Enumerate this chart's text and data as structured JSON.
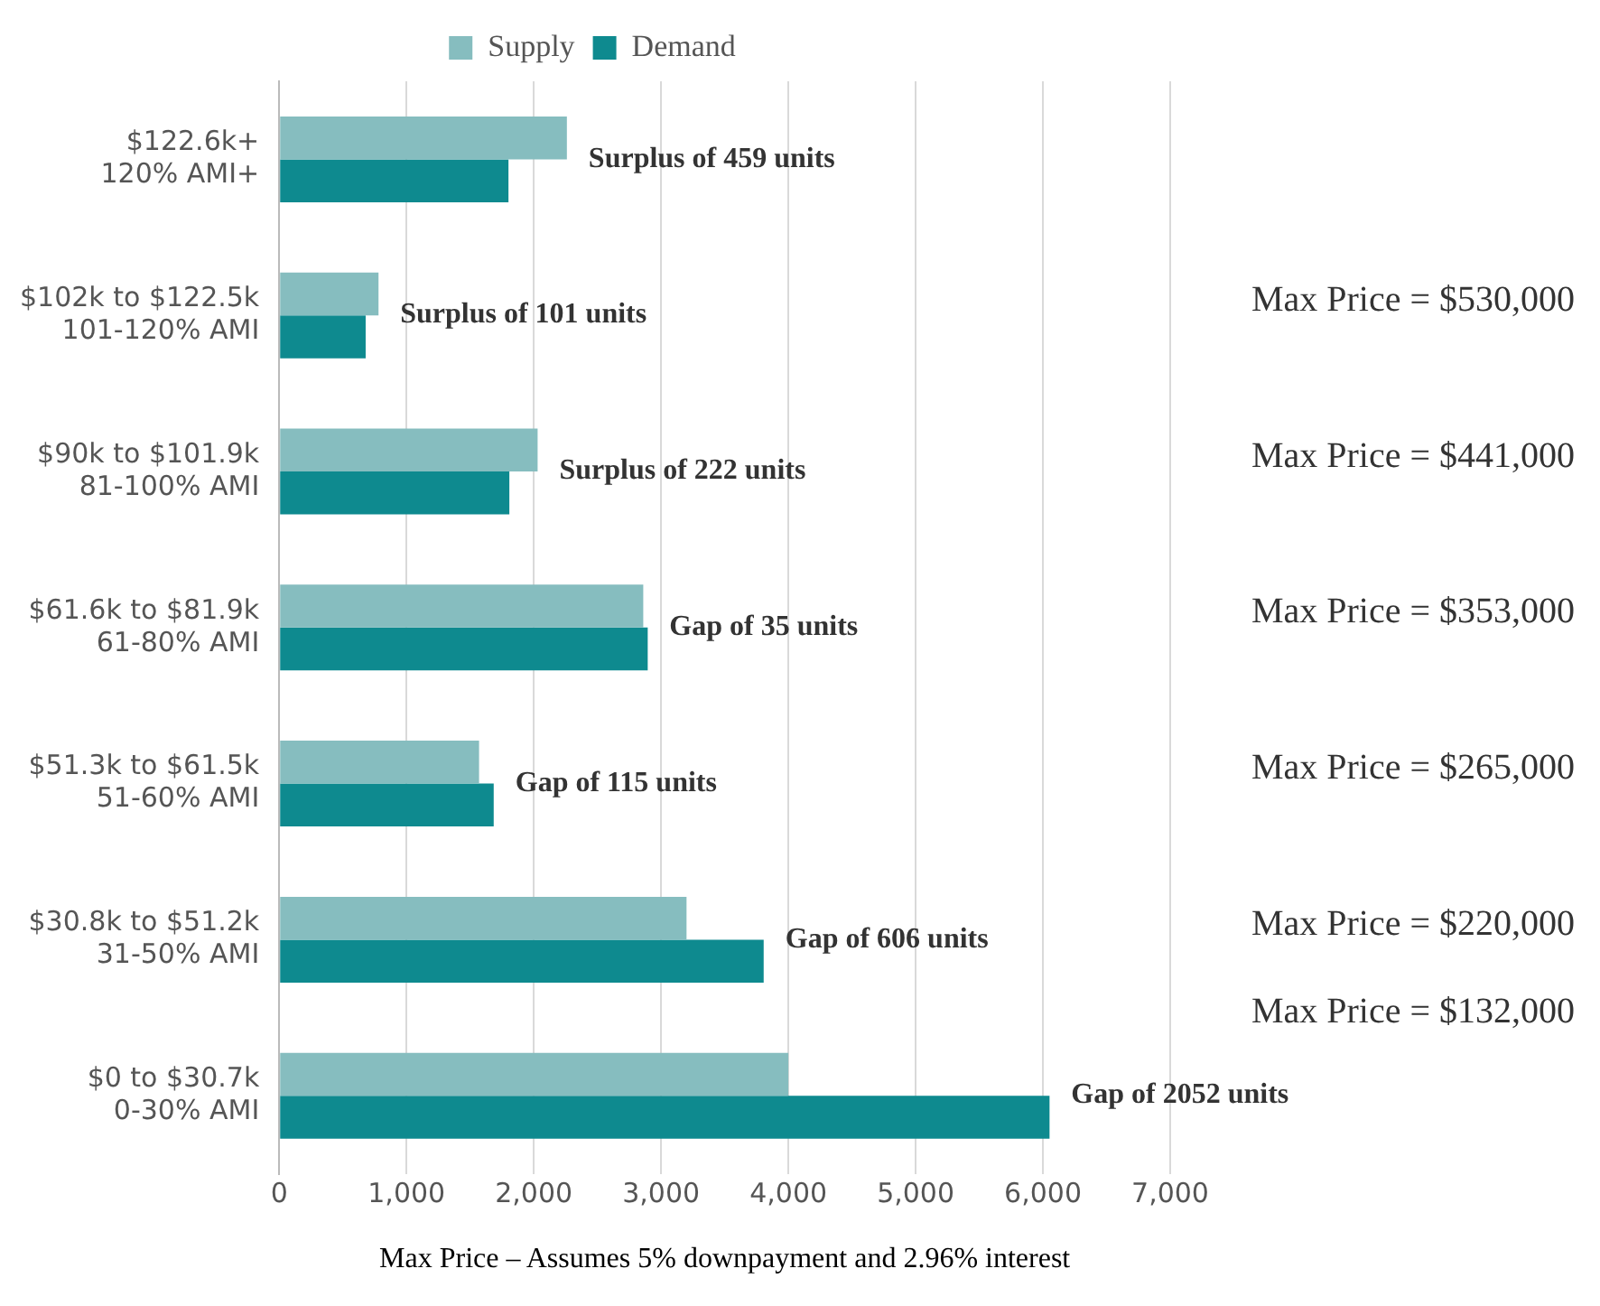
{
  "chart_data": {
    "type": "bar",
    "orientation": "horizontal",
    "categories": [
      "$122.6k+\n120% AMI+",
      "$102k to $122.5k\n101-120% AMI",
      "$90k to $101.9k\n81-100% AMI",
      "$61.6k to $81.9k\n61-80% AMI",
      "$51.3k to $61.5k\n51-60% AMI",
      "$30.8k to $51.2k\n31-50% AMI",
      "$0 to $30.7k\n0-30% AMI"
    ],
    "series": [
      {
        "name": "Supply",
        "color": "#86bdbf",
        "values": [
          2260,
          780,
          2030,
          2860,
          1570,
          3200,
          4000
        ]
      },
      {
        "name": "Demand",
        "color": "#0e8a8f",
        "values": [
          1801,
          679,
          1808,
          2895,
          1685,
          3806,
          6052
        ]
      }
    ],
    "xlim": [
      0,
      7000
    ],
    "xticks": [
      {
        "value": 0,
        "label": "0"
      },
      {
        "value": 1000,
        "label": "1,000"
      },
      {
        "value": 2000,
        "label": "2,000"
      },
      {
        "value": 3000,
        "label": "3,000"
      },
      {
        "value": 4000,
        "label": "4,000"
      },
      {
        "value": 5000,
        "label": "5,000"
      },
      {
        "value": 6000,
        "label": "6,000"
      },
      {
        "value": 7000,
        "label": "7,000"
      }
    ],
    "xlabel": "Max Price – Assumes 5% downpayment and 2.96% interest",
    "grid": "x",
    "legend": "top",
    "annotations": [
      {
        "text": "Surplus of 459 units",
        "x": 2260,
        "y": "$122.6k+\n120% AMI+"
      },
      {
        "text": "Surplus of 101 units",
        "x": 780,
        "y": "$102k to $122.5k\n101-120% AMI"
      },
      {
        "text": "Surplus of 222 units",
        "x": 2030,
        "y": "$90k to $101.9k\n81-100% AMI"
      },
      {
        "text": "Gap of 35 units",
        "x": 2895,
        "y": "$61.6k to $81.9k\n61-80% AMI"
      },
      {
        "text": "Gap of 115 units",
        "x": 1685,
        "y": "$51.3k to $61.5k\n51-60% AMI"
      },
      {
        "text": "Gap of 606 units",
        "x": 3806,
        "y": "$30.8k to $51.2k\n31-50% AMI"
      },
      {
        "text": "Gap of 2052 units",
        "x": 6052,
        "y": "$0 to $30.7k\n0-30% AMI"
      },
      "Max Price = $530,000",
      "Max Price = $441,000",
      "Max Price = $353,000",
      "Max Price = $265,000",
      "Max Price = $220,000",
      "Max Price = $132,000"
    ]
  }
}
